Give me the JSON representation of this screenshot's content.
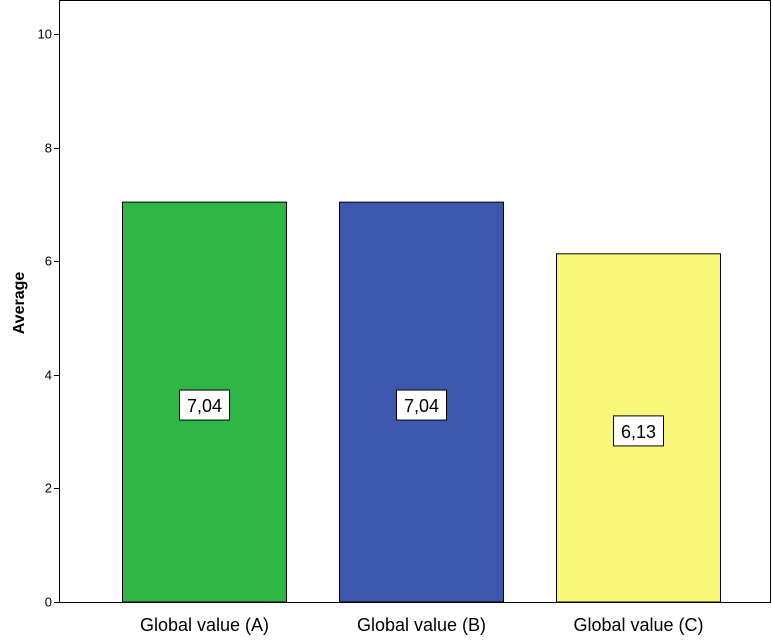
{
  "chart_data": {
    "type": "bar",
    "categories": [
      "Global value (A)",
      "Global value (B)",
      "Global value (C)"
    ],
    "values": [
      7.04,
      7.04,
      6.13
    ],
    "data_labels": [
      "7,04",
      "7,04",
      "6,13"
    ],
    "bar_colors": [
      "#2EB744",
      "#3D57AC",
      "#F8F77A"
    ],
    "ylabel": "Average",
    "ylim": [
      0,
      10
    ],
    "yticks": [
      0,
      2,
      4,
      6,
      8,
      10
    ],
    "ytick_labels": [
      "0",
      "2",
      "4",
      "6",
      "8",
      "10"
    ],
    "grid": false,
    "legend": "none"
  }
}
